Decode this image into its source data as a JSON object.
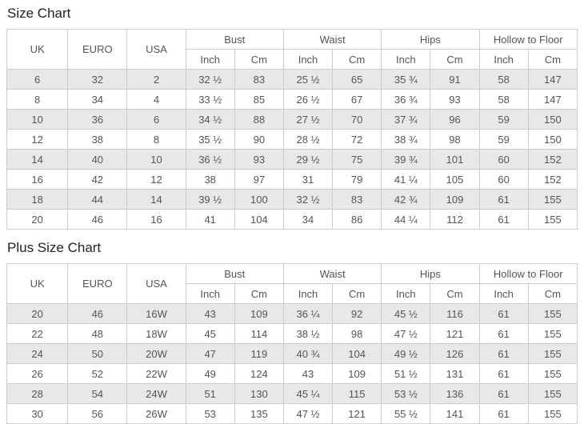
{
  "colors": {
    "stripe": "#e8e8e8",
    "border": "#cccccc",
    "text": "#555555",
    "title": "#222222"
  },
  "chart_data": [
    {
      "type": "table",
      "title": "Size Chart",
      "column_groups": [
        {
          "label": "UK",
          "span": 1
        },
        {
          "label": "EURO",
          "span": 1
        },
        {
          "label": "USA",
          "span": 1
        },
        {
          "label": "Bust",
          "span": 2
        },
        {
          "label": "Waist",
          "span": 2
        },
        {
          "label": "Hips",
          "span": 2
        },
        {
          "label": "Hollow to Floor",
          "span": 2
        }
      ],
      "unit_subheaders": [
        "Inch",
        "Cm"
      ],
      "columns_flat": [
        "UK",
        "EURO",
        "USA",
        "Bust Inch",
        "Bust Cm",
        "Waist Inch",
        "Waist Cm",
        "Hips Inch",
        "Hips Cm",
        "Hollow to Floor Inch",
        "Hollow to Floor Cm"
      ],
      "rows": [
        [
          "6",
          "32",
          "2",
          "32 ½",
          "83",
          "25 ½",
          "65",
          "35 ¾",
          "91",
          "58",
          "147"
        ],
        [
          "8",
          "34",
          "4",
          "33 ½",
          "85",
          "26 ½",
          "67",
          "36 ¾",
          "93",
          "58",
          "147"
        ],
        [
          "10",
          "36",
          "6",
          "34 ½",
          "88",
          "27 ½",
          "70",
          "37 ¾",
          "96",
          "59",
          "150"
        ],
        [
          "12",
          "38",
          "8",
          "35 ½",
          "90",
          "28 ½",
          "72",
          "38 ¾",
          "98",
          "59",
          "150"
        ],
        [
          "14",
          "40",
          "10",
          "36 ½",
          "93",
          "29 ½",
          "75",
          "39 ¾",
          "101",
          "60",
          "152"
        ],
        [
          "16",
          "42",
          "12",
          "38",
          "97",
          "31",
          "79",
          "41 ¼",
          "105",
          "60",
          "152"
        ],
        [
          "18",
          "44",
          "14",
          "39 ½",
          "100",
          "32 ½",
          "83",
          "42 ¾",
          "109",
          "61",
          "155"
        ],
        [
          "20",
          "46",
          "16",
          "41",
          "104",
          "34",
          "86",
          "44 ¼",
          "112",
          "61",
          "155"
        ]
      ]
    },
    {
      "type": "table",
      "title": "Plus Size Chart",
      "column_groups": [
        {
          "label": "UK",
          "span": 1
        },
        {
          "label": "EURO",
          "span": 1
        },
        {
          "label": "USA",
          "span": 1
        },
        {
          "label": "Bust",
          "span": 2
        },
        {
          "label": "Waist",
          "span": 2
        },
        {
          "label": "Hips",
          "span": 2
        },
        {
          "label": "Hollow to Floor",
          "span": 2
        }
      ],
      "unit_subheaders": [
        "Inch",
        "Cm"
      ],
      "columns_flat": [
        "UK",
        "EURO",
        "USA",
        "Bust Inch",
        "Bust Cm",
        "Waist Inch",
        "Waist Cm",
        "Hips Inch",
        "Hips Cm",
        "Hollow to Floor Inch",
        "Hollow to Floor Cm"
      ],
      "rows": [
        [
          "20",
          "46",
          "16W",
          "43",
          "109",
          "36 ¼",
          "92",
          "45 ½",
          "116",
          "61",
          "155"
        ],
        [
          "22",
          "48",
          "18W",
          "45",
          "114",
          "38 ½",
          "98",
          "47 ½",
          "121",
          "61",
          "155"
        ],
        [
          "24",
          "50",
          "20W",
          "47",
          "119",
          "40 ¾",
          "104",
          "49 ½",
          "126",
          "61",
          "155"
        ],
        [
          "26",
          "52",
          "22W",
          "49",
          "124",
          "43",
          "109",
          "51 ½",
          "131",
          "61",
          "155"
        ],
        [
          "28",
          "54",
          "24W",
          "51",
          "130",
          "45 ¼",
          "115",
          "53 ½",
          "136",
          "61",
          "155"
        ],
        [
          "30",
          "56",
          "26W",
          "53",
          "135",
          "47 ½",
          "121",
          "55 ½",
          "141",
          "61",
          "155"
        ]
      ]
    }
  ]
}
